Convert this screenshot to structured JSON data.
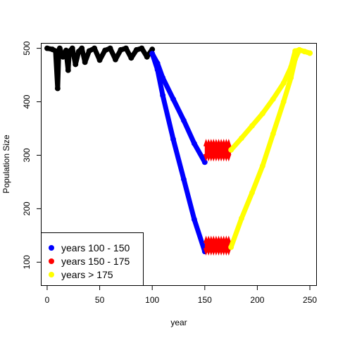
{
  "chart_data": {
    "type": "scatter",
    "title": "",
    "xlabel": "year",
    "ylabel": "Population Size",
    "xlim": [
      -6,
      256
    ],
    "ylim": [
      57,
      510
    ],
    "x_ticks": [
      0,
      50,
      100,
      150,
      200,
      250
    ],
    "y_ticks": [
      100,
      200,
      300,
      400,
      500
    ],
    "grid": false,
    "legend_position": "bottom-left",
    "series": [
      {
        "name": "",
        "color": "#000000",
        "segments": [
          {
            "x": [
              0,
              5,
              8,
              10,
              11,
              12,
              15,
              18,
              20,
              21,
              24,
              27,
              30,
              33,
              36,
              40,
              45,
              50,
              55,
              60,
              65,
              70,
              75,
              80,
              85,
              90,
              95,
              100
            ],
            "y": [
              500,
              498,
              495,
              425,
              492,
              500,
              484,
              496,
              459,
              494,
              500,
              470,
              494,
              500,
              474,
              495,
              500,
              478,
              496,
              500,
              479,
              497,
              500,
              482,
              497,
              500,
              484,
              498
            ]
          }
        ]
      },
      {
        "name": "years 100 - 150",
        "color": "#0000ff",
        "segments": [
          {
            "x": [
              100,
              105,
              110,
              120,
              130,
              140,
              150
            ],
            "y": [
              490,
              472,
              445,
              405,
              365,
              322,
              287
            ]
          },
          {
            "x": [
              100,
              105,
              110,
              120,
              130,
              140,
              150
            ],
            "y": [
              490,
              460,
              412,
              330,
              255,
              180,
              120
            ]
          }
        ]
      },
      {
        "name": "years 150 - 175",
        "color": "#ff0000",
        "segments": [
          {
            "x": [
              150,
              175
            ],
            "y": [
              308,
              308
            ],
            "band": [
              300,
              319
            ]
          },
          {
            "x": [
              150,
              175
            ],
            "y": [
              131,
              131
            ],
            "band": [
              124,
              138
            ]
          }
        ]
      },
      {
        "name": "years > 175",
        "color": "#ffff00",
        "segments": [
          {
            "x": [
              175,
              185,
              195,
              205,
              215,
              225,
              232,
              236,
              240,
              245,
              250
            ],
            "y": [
              310,
              332,
              355,
              378,
              405,
              435,
              465,
              495,
              497,
              494,
              491
            ]
          },
          {
            "x": [
              175,
              185,
              195,
              205,
              215,
              225,
              232,
              236,
              240,
              245,
              250
            ],
            "y": [
              128,
              182,
              230,
              280,
              340,
              400,
              445,
              480,
              497,
              494,
              491
            ]
          }
        ]
      }
    ]
  }
}
